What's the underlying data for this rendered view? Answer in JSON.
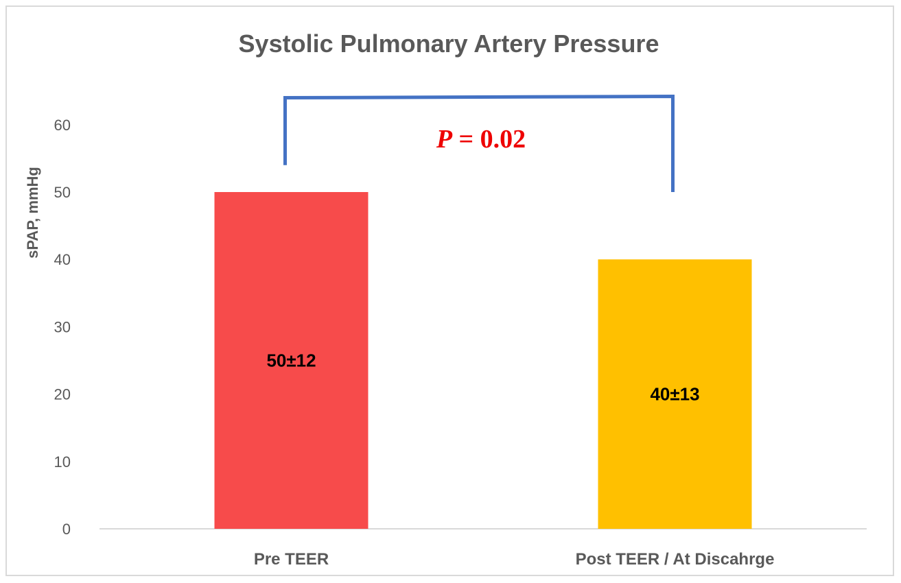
{
  "chart_data": {
    "type": "bar",
    "title": "Systolic Pulmonary Artery Pressure",
    "ylabel": "sPAP, mmHg",
    "xlabel": "",
    "categories": [
      "Pre TEER",
      "Post TEER / At Discahrge"
    ],
    "values": [
      50,
      40
    ],
    "data_labels": [
      "50±12",
      "40±13"
    ],
    "colors": [
      "#f74b4b",
      "#ffc000"
    ],
    "ylim": [
      0,
      60
    ],
    "yticks": [
      0,
      10,
      20,
      30,
      40,
      50,
      60
    ],
    "grid": false,
    "legend": "none",
    "annotation": {
      "p_symbol": "P",
      "p_value": " = 0.02",
      "bracket_color": "#4472c4",
      "bracket_start": 54,
      "bracket_end": 50,
      "bracket_top": 64
    }
  }
}
